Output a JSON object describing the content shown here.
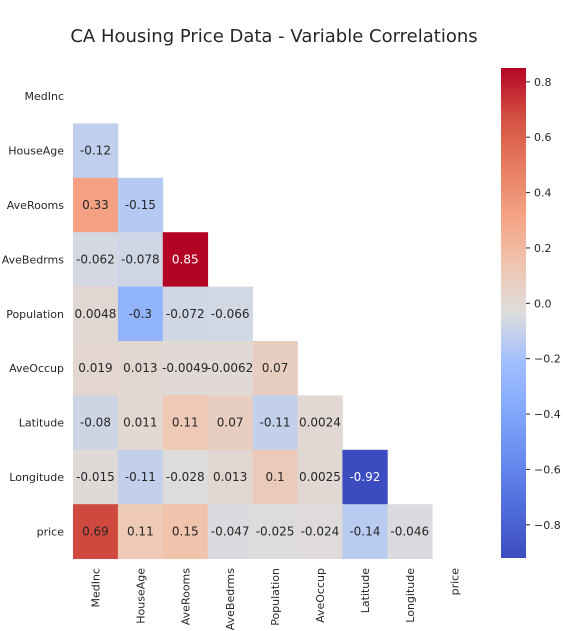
{
  "chart_data": {
    "type": "heatmap",
    "title": "CA Housing Price Data - Variable Correlations",
    "variables": [
      "MedInc",
      "HouseAge",
      "AveRooms",
      "AveBedrms",
      "Population",
      "AveOccup",
      "Latitude",
      "Longitude",
      "price"
    ],
    "mask": "upper-triangle-including-diagonal",
    "lower_triangle_values": [
      [],
      [
        -0.12
      ],
      [
        0.33,
        -0.15
      ],
      [
        -0.062,
        -0.078,
        0.85
      ],
      [
        0.0048,
        -0.3,
        -0.072,
        -0.066
      ],
      [
        0.019,
        0.013,
        -0.0049,
        -0.0062,
        0.07
      ],
      [
        -0.08,
        0.011,
        0.11,
        0.07,
        -0.11,
        0.0024
      ],
      [
        -0.015,
        -0.11,
        -0.028,
        0.013,
        0.1,
        0.0025,
        -0.92
      ],
      [
        0.69,
        0.11,
        0.15,
        -0.047,
        -0.025,
        -0.024,
        -0.14,
        -0.046
      ]
    ],
    "labels_text": [
      [],
      [
        "-0.12"
      ],
      [
        "0.33",
        "-0.15"
      ],
      [
        "-0.062",
        "-0.078",
        "0.85"
      ],
      [
        "0.0048",
        "-0.3",
        "-0.072",
        "-0.066"
      ],
      [
        "0.019",
        "0.013",
        "-0.0049",
        "-0.0062",
        "0.07"
      ],
      [
        "-0.08",
        "0.011",
        "0.11",
        "0.07",
        "-0.11",
        "0.0024"
      ],
      [
        "-0.015",
        "-0.11",
        "-0.028",
        "0.013",
        "0.1",
        "0.0025",
        "-0.92"
      ],
      [
        "0.69",
        "0.11",
        "0.15",
        "-0.047",
        "-0.025",
        "-0.024",
        "-0.14",
        "-0.046"
      ]
    ],
    "colormap": "coolwarm",
    "vmin": -0.92,
    "vmax": 0.85,
    "colorbar": {
      "position": "right",
      "ticks": [
        0.8,
        0.6,
        0.4,
        0.2,
        0.0,
        -0.2,
        -0.4,
        -0.6,
        -0.8
      ],
      "tick_labels": [
        "0.8",
        "0.6",
        "0.4",
        "0.2",
        "0.0",
        "−0.2",
        "−0.4",
        "−0.6",
        "−0.8"
      ]
    }
  }
}
